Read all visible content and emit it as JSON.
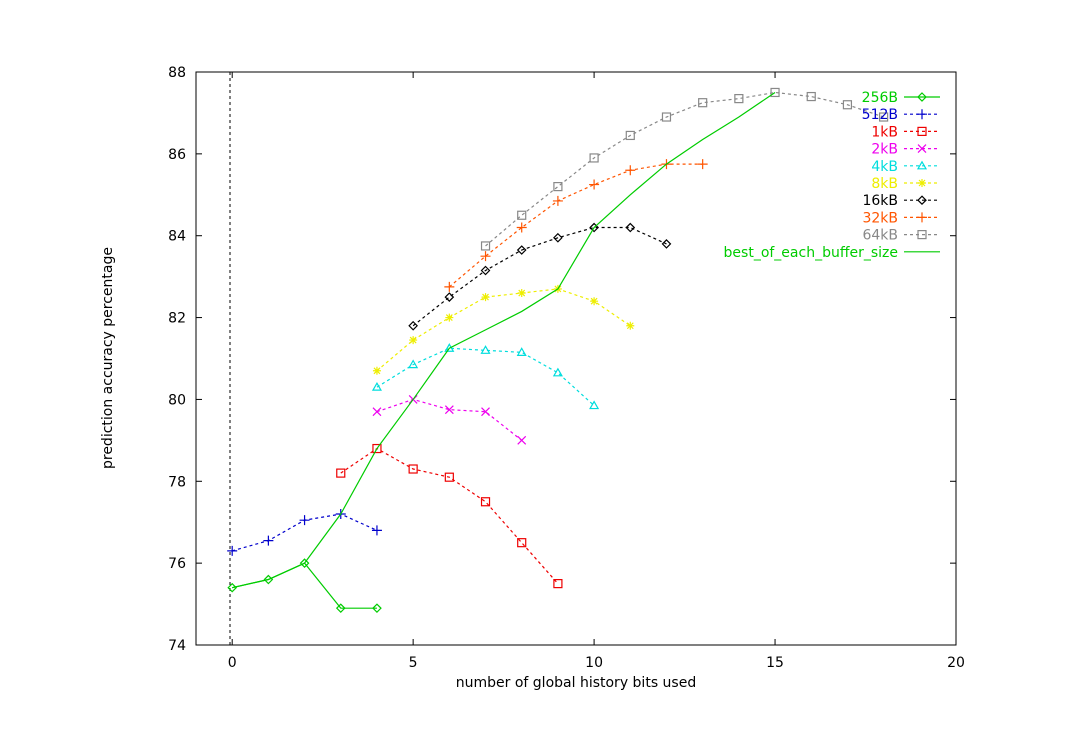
{
  "chart_data": {
    "type": "line",
    "xlabel": "number of global history bits used",
    "ylabel": "prediction accuracy percentage",
    "xlim": [
      -1,
      20
    ],
    "ylim": [
      74,
      88
    ],
    "xticks": [
      "0",
      "5",
      "10",
      "15",
      "20"
    ],
    "xtick_values": [
      0,
      5,
      10,
      15,
      20
    ],
    "yticks": [
      "74",
      "76",
      "78",
      "80",
      "82",
      "84",
      "86",
      "88"
    ],
    "ytick_values": [
      74,
      76,
      78,
      80,
      82,
      84,
      86,
      88
    ],
    "zero_line": {
      "x": 0,
      "style": "dashed",
      "color": "#000000"
    },
    "legend_placement": "top-right",
    "series": [
      {
        "name": "256B",
        "color": "#00cc00",
        "marker": "diamond",
        "dash": "solid",
        "x": [
          0,
          1,
          2,
          3,
          4
        ],
        "y": [
          75.4,
          75.6,
          76.0,
          74.9,
          74.9
        ]
      },
      {
        "name": "512B",
        "color": "#0000cc",
        "marker": "plus",
        "dash": "dashed",
        "x": [
          0,
          1,
          2,
          3,
          4
        ],
        "y": [
          76.3,
          76.55,
          77.05,
          77.2,
          76.8
        ]
      },
      {
        "name": "1kB",
        "color": "#ee0000",
        "marker": "square",
        "dash": "dashed",
        "x": [
          3,
          4,
          5,
          6,
          7,
          8,
          9
        ],
        "y": [
          78.2,
          78.8,
          78.3,
          78.1,
          77.5,
          76.5,
          75.5
        ]
      },
      {
        "name": "2kB",
        "color": "#ee00ee",
        "marker": "cross",
        "dash": "dashed",
        "x": [
          4,
          5,
          6,
          7,
          8
        ],
        "y": [
          79.7,
          80.0,
          79.75,
          79.7,
          79.0
        ]
      },
      {
        "name": "4kB",
        "color": "#00dddd",
        "marker": "triangle",
        "dash": "dashed",
        "x": [
          4,
          5,
          6,
          7,
          8,
          9,
          10
        ],
        "y": [
          80.3,
          80.85,
          81.25,
          81.2,
          81.15,
          80.65,
          79.85
        ]
      },
      {
        "name": "8kB",
        "color": "#eeee00",
        "marker": "star",
        "dash": "dashed",
        "x": [
          4,
          5,
          6,
          7,
          8,
          9,
          10,
          11
        ],
        "y": [
          80.7,
          81.45,
          82.0,
          82.5,
          82.6,
          82.7,
          82.4,
          81.8
        ]
      },
      {
        "name": "16kB",
        "color": "#000000",
        "marker": "diamond",
        "dash": "dashed",
        "x": [
          5,
          6,
          7,
          8,
          9,
          10,
          11,
          12
        ],
        "y": [
          81.8,
          82.5,
          83.15,
          83.65,
          83.95,
          84.2,
          84.2,
          83.8
        ]
      },
      {
        "name": "32kB",
        "color": "#ff5500",
        "marker": "plus",
        "dash": "dashed",
        "x": [
          6,
          7,
          8,
          9,
          10,
          11,
          12,
          13
        ],
        "y": [
          82.75,
          83.5,
          84.2,
          84.85,
          85.25,
          85.6,
          85.75,
          85.75
        ]
      },
      {
        "name": "64kB",
        "color": "#888888",
        "marker": "square",
        "dash": "dashed",
        "x": [
          7,
          8,
          9,
          10,
          11,
          12,
          13,
          14,
          15,
          16,
          17,
          18
        ],
        "y": [
          83.75,
          84.5,
          85.2,
          85.9,
          86.45,
          86.9,
          87.25,
          87.35,
          87.5,
          87.4,
          87.2,
          86.9
        ]
      },
      {
        "name": "best_of_each_buffer_size",
        "color": "#00cc00",
        "marker": "none",
        "dash": "solid",
        "x": [
          0,
          1,
          2,
          3,
          4,
          5,
          6,
          7,
          8,
          9,
          10,
          11,
          12,
          13,
          14,
          15
        ],
        "y": [
          75.4,
          75.6,
          76.0,
          77.2,
          78.8,
          80.0,
          81.25,
          81.7,
          82.15,
          82.7,
          84.2,
          85.0,
          85.75,
          86.35,
          86.9,
          87.5
        ]
      }
    ]
  }
}
